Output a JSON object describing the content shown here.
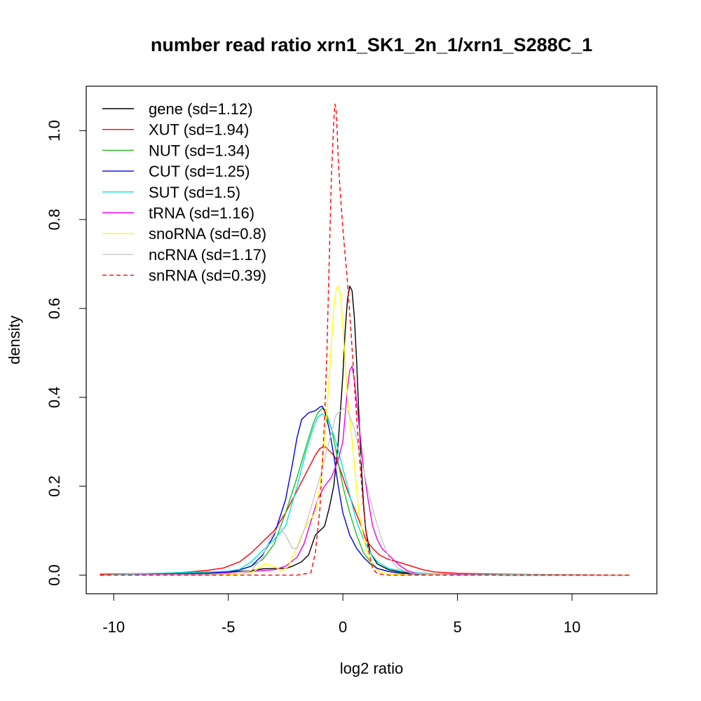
{
  "chart_data": {
    "type": "line",
    "title": "number read ratio xrn1_SK1_2n_1/xrn1_S288C_1",
    "xlabel": "log2 ratio",
    "ylabel": "density",
    "xlim": [
      -11.2,
      13.7
    ],
    "ylim": [
      -0.042,
      1.1
    ],
    "xticks": [
      -10,
      -5,
      0,
      5,
      10
    ],
    "xtick_labels": [
      "-10",
      "-5",
      "0",
      "5",
      "10"
    ],
    "yticks": [
      0.0,
      0.2,
      0.4,
      0.6,
      0.8,
      1.0
    ],
    "ytick_labels": [
      "0.0",
      "0.2",
      "0.4",
      "0.6",
      "0.8",
      "1.0"
    ],
    "grid": false,
    "legend_position": "top-left",
    "series": [
      {
        "name": "gene (sd=1.12)",
        "color": "#000000",
        "dash": false,
        "x": [
          -10.6,
          -8,
          -6,
          -5,
          -4,
          -3.5,
          -3,
          -2.5,
          -2.2,
          -1.8,
          -1.5,
          -1.3,
          -1.2,
          -1.0,
          -0.8,
          -0.6,
          -0.4,
          -0.2,
          0.0,
          0.1,
          0.2,
          0.3,
          0.4,
          0.5,
          0.6,
          0.7,
          0.8,
          0.9,
          1.0,
          1.2,
          1.5,
          2.0,
          2.5,
          3.0,
          4.0,
          5.0,
          7.0,
          9.0,
          12.5
        ],
        "y": [
          0.0,
          0.002,
          0.005,
          0.007,
          0.01,
          0.014,
          0.015,
          0.015,
          0.02,
          0.03,
          0.045,
          0.075,
          0.09,
          0.1,
          0.11,
          0.15,
          0.2,
          0.3,
          0.45,
          0.55,
          0.62,
          0.65,
          0.64,
          0.58,
          0.48,
          0.36,
          0.25,
          0.16,
          0.1,
          0.05,
          0.025,
          0.012,
          0.007,
          0.004,
          0.002,
          0.001,
          0.0,
          0.0,
          0.0
        ]
      },
      {
        "name": "XUT (sd=1.94)",
        "color": "#ff0000",
        "dash": false,
        "x": [
          -10.6,
          -9,
          -8,
          -7,
          -6,
          -5.2,
          -5,
          -4.5,
          -4,
          -3.5,
          -3,
          -2.5,
          -2,
          -1.5,
          -1.2,
          -1.0,
          -0.8,
          -0.6,
          -0.4,
          -0.2,
          0.0,
          0.2,
          0.5,
          0.8,
          1.0,
          1.3,
          1.6,
          2.0,
          2.5,
          3.0,
          3.5,
          4.0,
          5.0,
          6.0,
          7.0,
          9.0,
          12.5
        ],
        "y": [
          0.002,
          0.003,
          0.004,
          0.006,
          0.01,
          0.016,
          0.02,
          0.03,
          0.05,
          0.075,
          0.1,
          0.14,
          0.19,
          0.24,
          0.27,
          0.285,
          0.29,
          0.28,
          0.27,
          0.25,
          0.22,
          0.19,
          0.15,
          0.11,
          0.08,
          0.06,
          0.045,
          0.035,
          0.028,
          0.02,
          0.012,
          0.007,
          0.004,
          0.003,
          0.002,
          0.001,
          0.0
        ]
      },
      {
        "name": "NUT (sd=1.34)",
        "color": "#22bb22",
        "dash": false,
        "x": [
          -10.6,
          -8,
          -6,
          -5,
          -4.5,
          -4,
          -3.5,
          -3,
          -2.5,
          -2,
          -1.6,
          -1.3,
          -1.1,
          -0.9,
          -0.8,
          -0.7,
          -0.5,
          -0.3,
          0.0,
          0.3,
          0.6,
          0.9,
          1.2,
          1.5,
          2.0,
          2.5,
          3.0,
          4.0,
          5.0,
          7.0,
          12.5
        ],
        "y": [
          0.0,
          0.002,
          0.005,
          0.008,
          0.012,
          0.02,
          0.035,
          0.07,
          0.14,
          0.22,
          0.29,
          0.34,
          0.365,
          0.375,
          0.37,
          0.36,
          0.33,
          0.28,
          0.2,
          0.14,
          0.09,
          0.05,
          0.03,
          0.015,
          0.008,
          0.005,
          0.003,
          0.002,
          0.001,
          0.0,
          0.0
        ]
      },
      {
        "name": "CUT (sd=1.25)",
        "color": "#0000dd",
        "dash": false,
        "x": [
          -10.6,
          -8,
          -6,
          -5,
          -4.5,
          -4,
          -3.5,
          -3,
          -2.5,
          -2.2,
          -2.0,
          -1.8,
          -1.5,
          -1.2,
          -1.0,
          -0.9,
          -0.8,
          -0.6,
          -0.4,
          -0.2,
          0.0,
          0.3,
          0.6,
          0.9,
          1.2,
          1.5,
          2.0,
          2.5,
          3.0,
          4.0,
          5.0,
          7.0,
          12.5
        ],
        "y": [
          0.0,
          0.002,
          0.004,
          0.007,
          0.012,
          0.02,
          0.045,
          0.09,
          0.17,
          0.25,
          0.31,
          0.35,
          0.365,
          0.37,
          0.378,
          0.38,
          0.37,
          0.33,
          0.27,
          0.2,
          0.14,
          0.09,
          0.06,
          0.04,
          0.025,
          0.015,
          0.008,
          0.004,
          0.003,
          0.002,
          0.001,
          0.0,
          0.0
        ]
      },
      {
        "name": "SUT (sd=1.5)",
        "color": "#00e5e5",
        "dash": false,
        "x": [
          -10.6,
          -9,
          -8,
          -7,
          -6,
          -5,
          -4.5,
          -4,
          -3.5,
          -3,
          -2.5,
          -2,
          -1.6,
          -1.3,
          -1.1,
          -0.9,
          -0.7,
          -0.5,
          -0.3,
          0.0,
          0.3,
          0.6,
          0.9,
          1.2,
          1.5,
          2.0,
          2.5,
          3.0,
          4.0,
          5.0,
          7.0,
          12.5
        ],
        "y": [
          0.0,
          0.003,
          0.004,
          0.006,
          0.007,
          0.009,
          0.013,
          0.03,
          0.055,
          0.08,
          0.11,
          0.2,
          0.28,
          0.33,
          0.355,
          0.363,
          0.355,
          0.33,
          0.3,
          0.24,
          0.18,
          0.12,
          0.08,
          0.05,
          0.03,
          0.015,
          0.01,
          0.006,
          0.003,
          0.002,
          0.001,
          0.0
        ]
      },
      {
        "name": "tRNA (sd=1.16)",
        "color": "#ee00ee",
        "dash": false,
        "x": [
          -10.6,
          -8,
          -6,
          -5,
          -4,
          -3.5,
          -3,
          -2.5,
          -2,
          -1.7,
          -1.4,
          -1.1,
          -0.8,
          -0.5,
          -0.2,
          0.0,
          0.1,
          0.2,
          0.3,
          0.4,
          0.5,
          0.7,
          0.9,
          1.1,
          1.3,
          1.5,
          1.7,
          1.9,
          2.1,
          2.4,
          2.8,
          3.2,
          4.0,
          5.0,
          7.0,
          12.5
        ],
        "y": [
          0.0,
          0.001,
          0.003,
          0.005,
          0.008,
          0.01,
          0.012,
          0.02,
          0.04,
          0.07,
          0.12,
          0.17,
          0.2,
          0.22,
          0.26,
          0.3,
          0.36,
          0.42,
          0.46,
          0.47,
          0.44,
          0.34,
          0.24,
          0.17,
          0.11,
          0.08,
          0.06,
          0.05,
          0.04,
          0.025,
          0.01,
          0.004,
          0.002,
          0.001,
          0.0,
          0.0
        ]
      },
      {
        "name": "snoRNA (sd=0.8)",
        "color": "#ffff00",
        "dash": false,
        "x": [
          -10.6,
          -6,
          -5,
          -4,
          -3.7,
          -3.4,
          -3,
          -2.7,
          -2.4,
          -2.1,
          -1.8,
          -1.5,
          -1.2,
          -1.0,
          -0.8,
          -0.6,
          -0.4,
          -0.3,
          -0.2,
          -0.1,
          0.0,
          0.1,
          0.2,
          0.35,
          0.5,
          0.7,
          1.0,
          1.3,
          1.6,
          2.0,
          3.0,
          5.0,
          12.5
        ],
        "y": [
          0.0,
          0.0,
          0.001,
          0.005,
          0.015,
          0.025,
          0.02,
          0.01,
          0.018,
          0.05,
          0.09,
          0.12,
          0.14,
          0.2,
          0.3,
          0.44,
          0.6,
          0.64,
          0.65,
          0.63,
          0.56,
          0.48,
          0.4,
          0.33,
          0.25,
          0.14,
          0.06,
          0.02,
          0.008,
          0.002,
          0.0,
          0.0,
          0.0
        ]
      },
      {
        "name": "ncRNA (sd=1.17)",
        "color": "#c8c8c8",
        "dash": false,
        "x": [
          -10.6,
          -6,
          -5,
          -4,
          -3.5,
          -3.2,
          -2.8,
          -2.5,
          -2.2,
          -2.0,
          -1.7,
          -1.4,
          -1.0,
          -0.6,
          -0.3,
          0.0,
          0.2,
          0.5,
          0.8,
          1.1,
          1.4,
          1.7,
          2.0,
          2.4,
          3.0,
          5.0,
          12.5
        ],
        "y": [
          0.0,
          0.001,
          0.003,
          0.01,
          0.04,
          0.08,
          0.11,
          0.09,
          0.06,
          0.06,
          0.1,
          0.15,
          0.22,
          0.3,
          0.36,
          0.375,
          0.37,
          0.33,
          0.26,
          0.19,
          0.13,
          0.08,
          0.04,
          0.015,
          0.004,
          0.0,
          0.0
        ]
      },
      {
        "name": "snRNA (sd=0.39)",
        "color": "#ff0000",
        "dash": true,
        "x": [
          -10.6,
          -2.0,
          -1.4,
          -1.2,
          -1.0,
          -0.8,
          -0.7,
          -0.6,
          -0.5,
          -0.4,
          -0.35,
          -0.3,
          -0.25,
          -0.2,
          -0.1,
          0.0,
          0.1,
          0.2,
          0.35,
          0.5,
          0.7,
          0.9,
          1.1,
          1.3,
          1.5,
          2.0,
          12.5
        ],
        "y": [
          0.0,
          0.0,
          0.005,
          0.05,
          0.15,
          0.35,
          0.5,
          0.7,
          0.9,
          1.02,
          1.06,
          1.05,
          1.0,
          0.93,
          0.85,
          0.78,
          0.72,
          0.66,
          0.55,
          0.43,
          0.28,
          0.15,
          0.06,
          0.015,
          0.003,
          0.0,
          0.0
        ]
      }
    ]
  }
}
